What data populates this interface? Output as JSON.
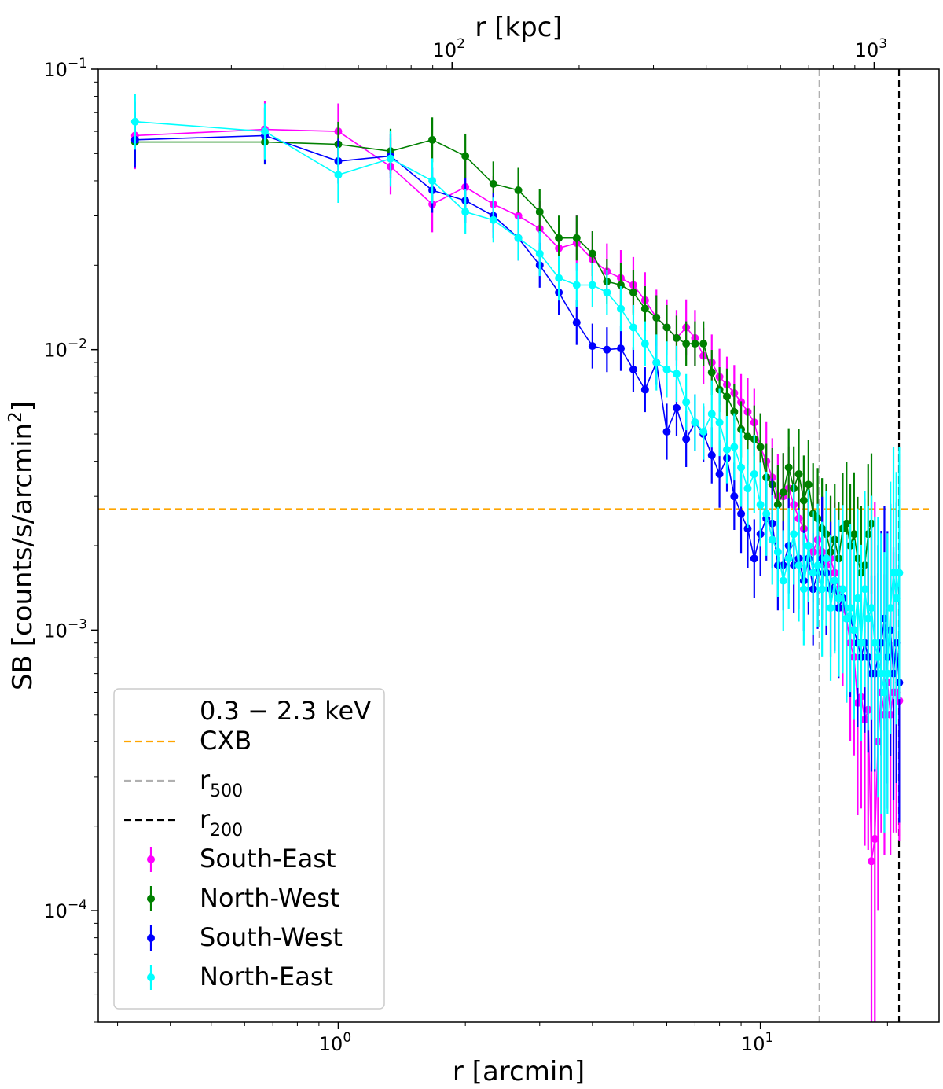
{
  "chart_data": {
    "type": "scatter",
    "title": "",
    "xlabel": "r [arcmin]",
    "ylabel": "SB [counts/s/arcmin",
    "ylabel_sup": "2",
    "ylabel_close": "]",
    "top_xlabel": "r [kpc]",
    "xscale": "log",
    "yscale": "log",
    "xlim": [
      0.27,
      26.5
    ],
    "ylim": [
      4e-05,
      0.1
    ],
    "x_ticks": [
      {
        "value": 1,
        "base": "10",
        "exp": "0"
      },
      {
        "value": 10,
        "base": "10",
        "exp": "1"
      }
    ],
    "y_ticks": [
      {
        "value": 0.1,
        "base": "10",
        "exp": "−1"
      },
      {
        "value": 0.01,
        "base": "10",
        "exp": "−2"
      },
      {
        "value": 0.001,
        "base": "10",
        "exp": "−3"
      },
      {
        "value": 0.0001,
        "base": "10",
        "exp": "−4"
      }
    ],
    "top_ticks": [
      {
        "value": 1.86,
        "base": "10",
        "exp": "2"
      },
      {
        "value": 18.6,
        "base": "10",
        "exp": "3"
      }
    ],
    "cxb_level": 0.0027,
    "r500": 13.8,
    "r200": 21.3,
    "colors": {
      "cxb": "#ffa500",
      "r500": "#b0b0b0",
      "r200": "#000000",
      "south_east": "#ff00ff",
      "north_west": "#008000",
      "south_west": "#0000ff",
      "north_east": "#00ffff"
    },
    "legend": {
      "placement": "lower-left",
      "title": "0.3 − 2.3 keV",
      "lines": [
        {
          "label": "CXB",
          "sub": "",
          "color": "#ffa500"
        },
        {
          "label": "r",
          "sub": "500",
          "color": "#b0b0b0"
        },
        {
          "label": "r",
          "sub": "200",
          "color": "#000000"
        }
      ]
    },
    "series": [
      {
        "name": "South-East",
        "color": "#ff00ff",
        "x": [
          0.33,
          0.67,
          1.0,
          1.33,
          1.67,
          2.0,
          2.33,
          2.67,
          3.0,
          3.33,
          3.67,
          4.0,
          4.33,
          4.67,
          5.0,
          5.33,
          5.67,
          6.0,
          6.33,
          6.67,
          7.0,
          7.33,
          7.67,
          8.0,
          8.33,
          8.67,
          9.0,
          9.33,
          9.67,
          10.0,
          10.33,
          10.67,
          11.0,
          11.33,
          11.67,
          12.0,
          12.33,
          12.67,
          13.0,
          13.33,
          13.67,
          14.0,
          14.33,
          14.67,
          15.0,
          15.33,
          15.67,
          16.0,
          16.33,
          16.67,
          17.0,
          17.33,
          17.67,
          18.0,
          18.33,
          18.67,
          19.0,
          19.33,
          19.67,
          20.0,
          20.33,
          20.67,
          21.0,
          21.33
        ],
        "y": [
          0.058,
          0.061,
          0.06,
          0.045,
          0.033,
          0.038,
          0.033,
          0.03,
          0.027,
          0.023,
          0.024,
          0.021,
          0.019,
          0.018,
          0.017,
          0.015,
          0.013,
          0.012,
          0.011,
          0.012,
          0.011,
          0.0095,
          0.009,
          0.008,
          0.0075,
          0.007,
          0.0065,
          0.006,
          0.0055,
          0.0045,
          0.004,
          0.0035,
          0.003,
          0.003,
          0.0032,
          0.0028,
          0.0025,
          0.0023,
          0.002,
          0.0019,
          0.0021,
          0.0019,
          0.0017,
          0.0018,
          0.0016,
          0.0014,
          0.0012,
          0.0011,
          0.0009,
          0.0008,
          0.00055,
          0.00058,
          0.00048,
          0.00052,
          0.00015,
          0.00018,
          0.0004,
          0.0006,
          0.0005,
          0.00065,
          0.0005,
          0.0006,
          0.0006,
          0.00056
        ],
        "err": [
          0.12,
          0.1,
          0.1,
          0.1,
          0.1,
          0.1,
          0.1,
          0.1,
          0.1,
          0.1,
          0.1,
          0.1,
          0.1,
          0.1,
          0.1,
          0.1,
          0.1,
          0.1,
          0.1,
          0.1,
          0.1,
          0.1,
          0.1,
          0.1,
          0.1,
          0.1,
          0.1,
          0.12,
          0.12,
          0.12,
          0.14,
          0.14,
          0.15,
          0.15,
          0.15,
          0.16,
          0.16,
          0.17,
          0.18,
          0.18,
          0.2,
          0.2,
          0.2,
          0.22,
          0.25,
          0.25,
          0.28,
          0.3,
          0.35,
          0.35,
          0.4,
          0.4,
          0.45,
          0.5,
          1.2,
          1.2,
          0.6,
          0.5,
          0.5,
          0.45,
          0.5,
          0.5,
          0.5,
          0.5
        ]
      },
      {
        "name": "North-West",
        "color": "#008000",
        "x": [
          0.33,
          0.67,
          1.0,
          1.33,
          1.67,
          2.0,
          2.33,
          2.67,
          3.0,
          3.33,
          3.67,
          4.0,
          4.33,
          4.67,
          5.0,
          5.33,
          5.67,
          6.0,
          6.33,
          6.67,
          7.0,
          7.33,
          7.67,
          8.0,
          8.33,
          8.67,
          9.0,
          9.33,
          9.67,
          10.0,
          10.33,
          10.67,
          11.0,
          11.33,
          11.67,
          12.0,
          12.33,
          12.67,
          13.0,
          13.33,
          13.67,
          14.0,
          14.33,
          14.67,
          15.0,
          15.33,
          15.67,
          16.0,
          16.33,
          16.67,
          17.0,
          17.33,
          17.67,
          18.0,
          18.33
        ],
        "y": [
          0.055,
          0.055,
          0.054,
          0.051,
          0.056,
          0.049,
          0.039,
          0.037,
          0.031,
          0.025,
          0.025,
          0.022,
          0.0175,
          0.017,
          0.016,
          0.014,
          0.013,
          0.012,
          0.011,
          0.0105,
          0.0105,
          0.0105,
          0.0083,
          0.0072,
          0.0068,
          0.006,
          0.0052,
          0.0049,
          0.0048,
          0.0045,
          0.0035,
          0.0033,
          0.0028,
          0.0031,
          0.0038,
          0.0032,
          0.0036,
          0.0029,
          0.0033,
          0.0026,
          0.0025,
          0.0023,
          0.0022,
          0.0019,
          0.0021,
          0.0018,
          0.0023,
          0.0024,
          0.002,
          0.0022,
          0.0018,
          0.0016,
          0.0017,
          0.0022,
          0.0024
        ],
        "err": [
          0.08,
          0.08,
          0.08,
          0.08,
          0.08,
          0.08,
          0.08,
          0.08,
          0.08,
          0.08,
          0.08,
          0.08,
          0.08,
          0.08,
          0.08,
          0.08,
          0.08,
          0.08,
          0.08,
          0.08,
          0.08,
          0.08,
          0.08,
          0.08,
          0.1,
          0.1,
          0.1,
          0.1,
          0.12,
          0.12,
          0.12,
          0.13,
          0.14,
          0.14,
          0.14,
          0.15,
          0.16,
          0.16,
          0.16,
          0.18,
          0.18,
          0.18,
          0.18,
          0.2,
          0.2,
          0.2,
          0.2,
          0.22,
          0.22,
          0.22,
          0.22,
          0.24,
          0.24,
          0.25,
          0.25
        ]
      },
      {
        "name": "South-West",
        "color": "#0000ff",
        "x": [
          0.33,
          0.67,
          1.0,
          1.33,
          1.67,
          2.0,
          2.33,
          2.67,
          3.0,
          3.33,
          3.67,
          4.0,
          4.33,
          4.67,
          5.0,
          5.33,
          5.67,
          6.0,
          6.33,
          6.67,
          7.0,
          7.33,
          7.67,
          8.0,
          8.33,
          8.67,
          9.0,
          9.33,
          9.67,
          10.0,
          10.33,
          10.67,
          11.0,
          11.33,
          11.67,
          12.0,
          12.33,
          12.67,
          13.0,
          13.33,
          13.67,
          14.0,
          14.33,
          14.67,
          15.0,
          15.33,
          15.67,
          16.0,
          16.33,
          16.67,
          17.0,
          17.33,
          17.67,
          18.0,
          18.33,
          18.67,
          19.0,
          19.33,
          19.67,
          20.0,
          20.33,
          20.67,
          21.0,
          21.33
        ],
        "y": [
          0.056,
          0.058,
          0.047,
          0.049,
          0.037,
          0.034,
          0.03,
          0.025,
          0.02,
          0.016,
          0.0125,
          0.0103,
          0.01,
          0.0101,
          0.0085,
          0.0072,
          0.009,
          0.0051,
          0.0062,
          0.0048,
          0.0055,
          0.005,
          0.0042,
          0.0036,
          0.0041,
          0.003,
          0.0026,
          0.0023,
          0.0018,
          0.0022,
          0.0025,
          0.0024,
          0.0017,
          0.0017,
          0.002,
          0.0017,
          0.0018,
          0.0015,
          0.0018,
          0.0014,
          0.0016,
          0.0018,
          0.0016,
          0.0014,
          0.0015,
          0.0012,
          0.0013,
          0.0011,
          0.0011,
          0.001,
          0.0009,
          0.0008,
          0.0009,
          0.0008,
          0.0007,
          0.0007,
          0.0008,
          0.0009,
          0.0011,
          0.0008,
          0.001,
          0.0007,
          0.0009,
          0.00065
        ],
        "err": [
          0.1,
          0.1,
          0.08,
          0.08,
          0.08,
          0.08,
          0.08,
          0.08,
          0.08,
          0.08,
          0.08,
          0.08,
          0.08,
          0.08,
          0.08,
          0.08,
          0.08,
          0.1,
          0.1,
          0.1,
          0.1,
          0.1,
          0.1,
          0.12,
          0.12,
          0.12,
          0.14,
          0.14,
          0.14,
          0.15,
          0.15,
          0.16,
          0.16,
          0.16,
          0.17,
          0.17,
          0.18,
          0.18,
          0.2,
          0.2,
          0.2,
          0.22,
          0.22,
          0.24,
          0.25,
          0.25,
          0.26,
          0.28,
          0.28,
          0.3,
          0.3,
          0.3,
          0.32,
          0.34,
          0.35,
          0.35,
          0.4,
          0.4,
          0.4,
          0.45,
          0.45,
          0.45,
          0.5,
          0.5
        ]
      },
      {
        "name": "North-East",
        "color": "#00ffff",
        "x": [
          0.33,
          0.67,
          1.0,
          1.33,
          1.67,
          2.0,
          2.33,
          2.67,
          3.0,
          3.33,
          3.67,
          4.0,
          4.33,
          4.67,
          5.0,
          5.33,
          5.67,
          6.0,
          6.33,
          6.67,
          7.0,
          7.33,
          7.67,
          8.0,
          8.33,
          8.67,
          9.0,
          9.33,
          9.67,
          10.0,
          10.33,
          10.67,
          11.0,
          11.33,
          11.67,
          12.0,
          12.33,
          12.67,
          13.0,
          13.33,
          13.67,
          14.0,
          14.33,
          14.67,
          15.0,
          15.33,
          15.67,
          16.0,
          16.33,
          16.67,
          17.0,
          17.33,
          17.67,
          18.0,
          18.33,
          18.67,
          19.0,
          19.33,
          19.67,
          20.0,
          20.33,
          20.67,
          21.0,
          21.33
        ],
        "y": [
          0.065,
          0.06,
          0.042,
          0.048,
          0.04,
          0.031,
          0.029,
          0.025,
          0.022,
          0.018,
          0.017,
          0.017,
          0.016,
          0.014,
          0.012,
          0.0105,
          0.009,
          0.0085,
          0.0082,
          0.0065,
          0.0055,
          0.0051,
          0.0059,
          0.0055,
          0.0044,
          0.0045,
          0.0038,
          0.0032,
          0.0036,
          0.0028,
          0.0026,
          0.0021,
          0.0019,
          0.0015,
          0.0018,
          0.0022,
          0.0017,
          0.0014,
          0.002,
          0.0016,
          0.0017,
          0.0014,
          0.0018,
          0.0012,
          0.0015,
          0.0013,
          0.0014,
          0.0011,
          0.0012,
          0.001,
          0.0013,
          0.0009,
          0.0014,
          0.0011,
          0.0012,
          0.0009,
          0.0008,
          0.0007,
          0.0006,
          0.0007,
          0.0012,
          0.0016,
          0.0013,
          0.0016
        ],
        "err": [
          0.1,
          0.1,
          0.1,
          0.1,
          0.08,
          0.08,
          0.08,
          0.08,
          0.08,
          0.08,
          0.08,
          0.08,
          0.08,
          0.08,
          0.08,
          0.08,
          0.1,
          0.1,
          0.1,
          0.1,
          0.1,
          0.1,
          0.12,
          0.12,
          0.12,
          0.12,
          0.14,
          0.14,
          0.14,
          0.15,
          0.15,
          0.16,
          0.16,
          0.18,
          0.18,
          0.18,
          0.2,
          0.2,
          0.2,
          0.22,
          0.22,
          0.24,
          0.24,
          0.26,
          0.26,
          0.28,
          0.3,
          0.3,
          0.3,
          0.32,
          0.32,
          0.35,
          0.35,
          0.4,
          0.4,
          0.45,
          0.5,
          0.5,
          0.5,
          0.5,
          0.45,
          0.45,
          0.45,
          0.45
        ]
      }
    ]
  }
}
